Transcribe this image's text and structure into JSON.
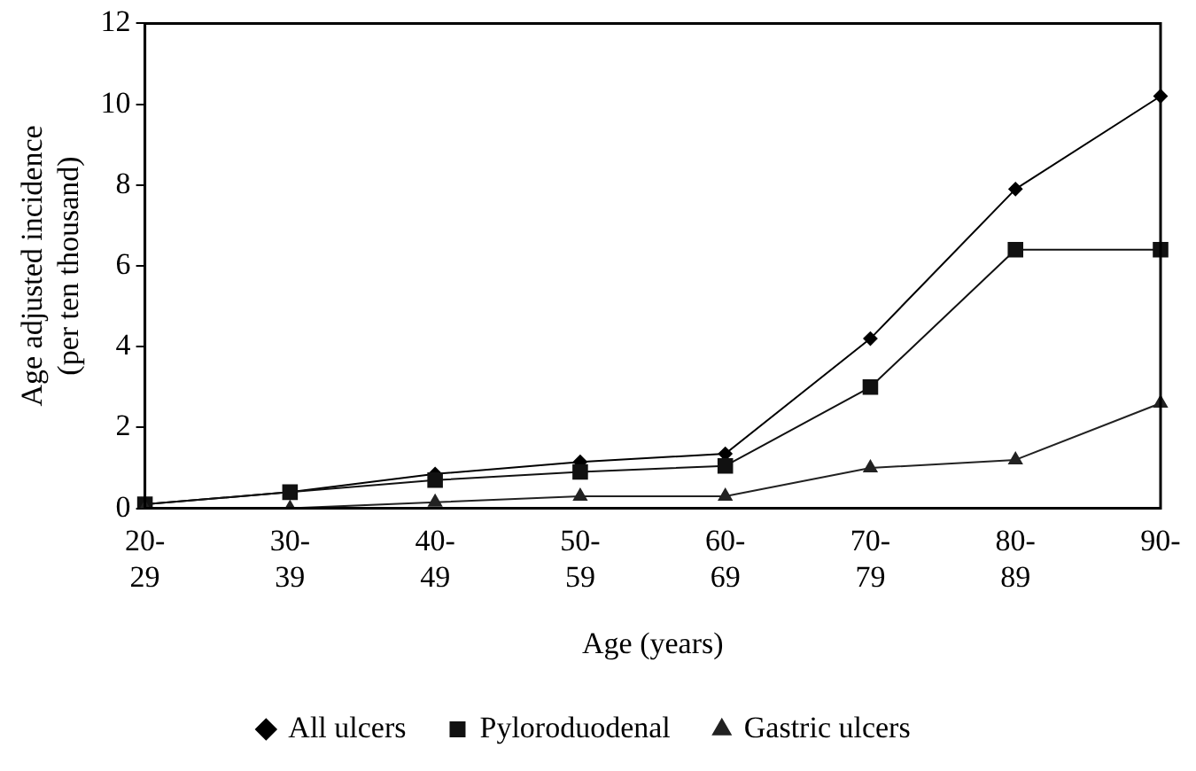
{
  "chart_data": {
    "type": "line",
    "xlabel": "Age (years)",
    "ylabel": "Age adjusted incidence (per ten thousand)",
    "categories": [
      "20-29",
      "30-39",
      "40-49",
      "50-59",
      "60-69",
      "70-79",
      "80-89",
      "90-"
    ],
    "series": [
      {
        "name": "All ulcers",
        "color": "#000000",
        "marker": "diamond",
        "values": [
          0.1,
          0.4,
          0.85,
          1.15,
          1.35,
          4.2,
          7.9,
          10.2
        ]
      },
      {
        "name": "Pyloroduodenal",
        "color": "#111111",
        "marker": "square",
        "values": [
          0.1,
          0.4,
          0.7,
          0.9,
          1.05,
          3.0,
          6.4,
          6.4
        ]
      },
      {
        "name": "Gastric ulcers",
        "color": "#222222",
        "marker": "triangle",
        "values": [
          0,
          0,
          0.15,
          0.3,
          0.3,
          1.0,
          1.2,
          2.6
        ]
      }
    ],
    "ylim": [
      0,
      12
    ],
    "yticks": [
      0,
      2,
      4,
      6,
      8,
      10,
      12
    ],
    "grid": false,
    "legend": "bottom",
    "line_style": "solid"
  }
}
